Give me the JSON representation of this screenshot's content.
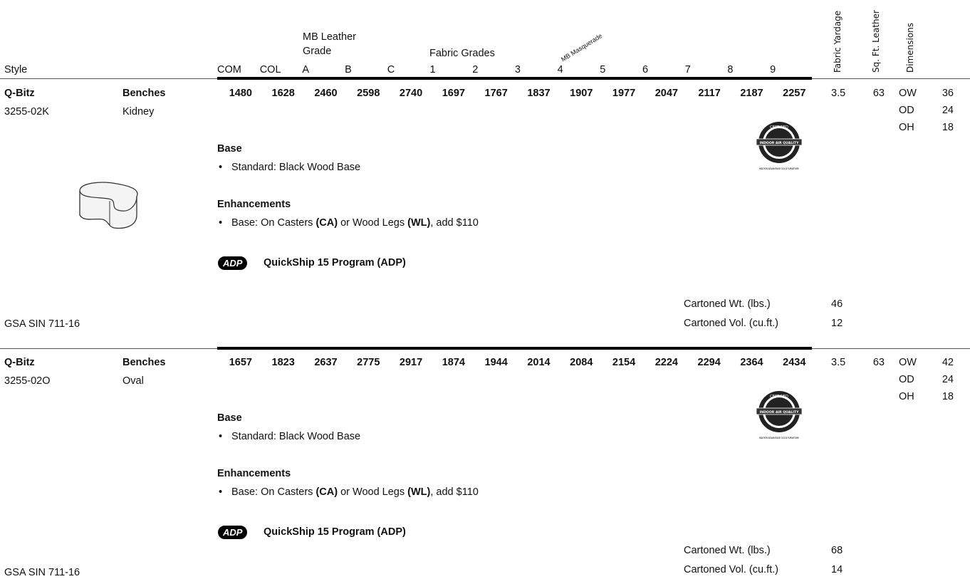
{
  "header": {
    "style": "Style",
    "mb_leather_grade": "MB Leather Grade",
    "fabric_grades": "Fabric Grades",
    "mb_masquerade": "MB Masquerade",
    "fabric_yardage": "Fabric Yardage",
    "sq_ft_leather": "Sq. Ft. Leather",
    "dimensions": "Dimensions",
    "columns": [
      "COM",
      "COL",
      "A",
      "B",
      "C",
      "1",
      "2",
      "3",
      "4",
      "5",
      "6",
      "7",
      "8",
      "9"
    ]
  },
  "products": [
    {
      "name": "Q-Bitz",
      "category": "Benches",
      "model": "3255-02K",
      "shape": "Kidney",
      "prices": [
        1480,
        1628,
        2460,
        2598,
        2740,
        1697,
        1767,
        1837,
        1907,
        1977,
        2047,
        2117,
        2187,
        2257
      ],
      "fabric_yardage": 3.5,
      "sq_ft_leather": 63,
      "dimensions": [
        {
          "label": "OW",
          "value": 36
        },
        {
          "label": "OD",
          "value": 24
        },
        {
          "label": "OH",
          "value": 18
        }
      ],
      "base": {
        "title": "Base",
        "item": "Standard: Black Wood Base"
      },
      "enhancements": {
        "title": "Enhancements",
        "item": [
          {
            "text": "Base: On Casters ",
            "bold": false
          },
          {
            "text": "(CA)",
            "bold": true
          },
          {
            "text": " or Wood Legs ",
            "bold": false
          },
          {
            "text": "(WL)",
            "bold": true
          },
          {
            "text": ", add $110",
            "bold": false
          }
        ]
      },
      "quickship_badge": "ADP",
      "quickship": "QuickShip 15 Program (ADP)",
      "certification": {
        "top": "CERTIFIED",
        "band": "INDOOR AIR QUALITY",
        "footer": "INDOOR ADVANTAGE GOLD FURNITURE"
      },
      "cartoned_wt_label": "Cartoned Wt. (lbs.)",
      "cartoned_wt": 46,
      "cartoned_vol_label": "Cartoned Vol. (cu.ft.)",
      "cartoned_vol": 12,
      "gsa": "GSA SIN 711-16"
    },
    {
      "name": "Q-Bitz",
      "category": "Benches",
      "model": "3255-02O",
      "shape": "Oval",
      "prices": [
        1657,
        1823,
        2637,
        2775,
        2917,
        1874,
        1944,
        2014,
        2084,
        2154,
        2224,
        2294,
        2364,
        2434
      ],
      "fabric_yardage": 3.5,
      "sq_ft_leather": 63,
      "dimensions": [
        {
          "label": "OW",
          "value": 42
        },
        {
          "label": "OD",
          "value": 24
        },
        {
          "label": "OH",
          "value": 18
        }
      ],
      "base": {
        "title": "Base",
        "item": "Standard: Black Wood Base"
      },
      "enhancements": {
        "title": "Enhancements",
        "item": [
          {
            "text": "Base: On Casters ",
            "bold": false
          },
          {
            "text": "(CA)",
            "bold": true
          },
          {
            "text": " or Wood Legs ",
            "bold": false
          },
          {
            "text": "(WL)",
            "bold": true
          },
          {
            "text": ", add $110",
            "bold": false
          }
        ]
      },
      "quickship_badge": "ADP",
      "quickship": "QuickShip 15 Program (ADP)",
      "certification": {
        "top": "CERTIFIED",
        "band": "INDOOR AIR QUALITY",
        "footer": "INDOOR ADVANTAGE GOLD FURNITURE"
      },
      "cartoned_wt_label": "Cartoned Wt. (lbs.)",
      "cartoned_wt": 68,
      "cartoned_vol_label": "Cartoned Vol. (cu.ft.)",
      "cartoned_vol": 14,
      "gsa": "GSA SIN 711-16"
    }
  ]
}
